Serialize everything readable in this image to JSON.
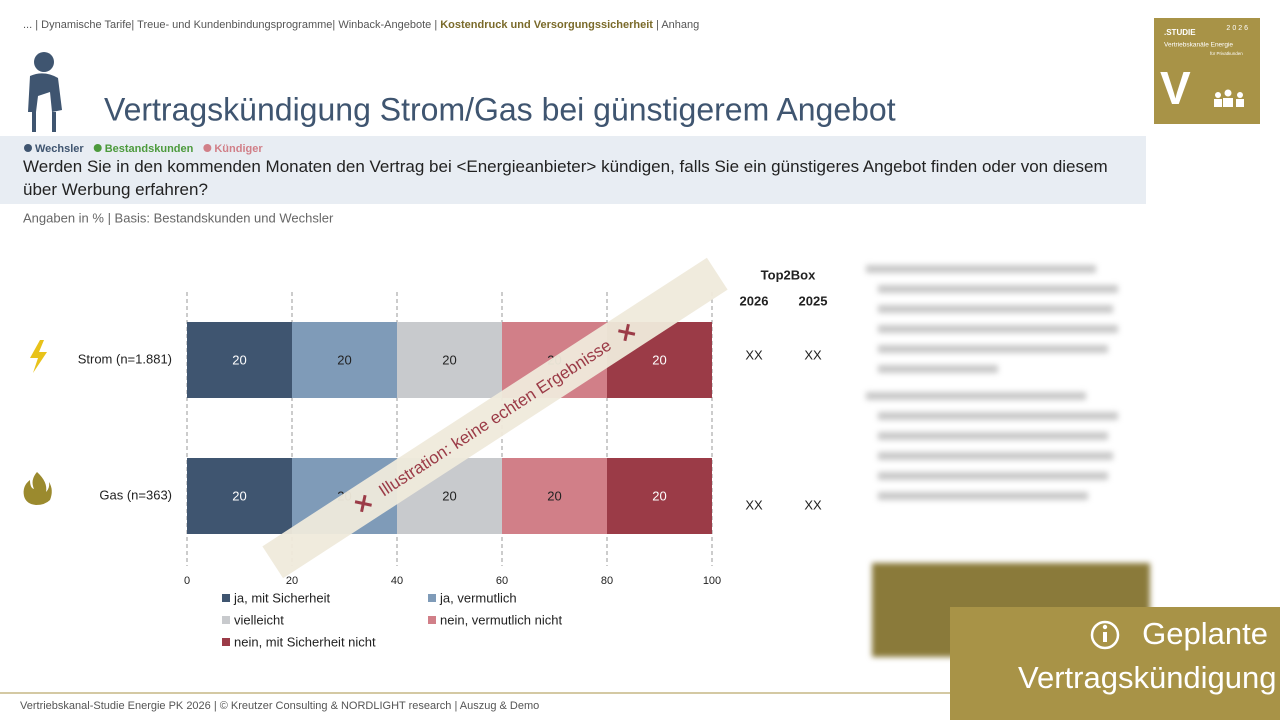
{
  "breadcrumb": {
    "before": "... | Dynamische Tarife| Treue- und Kundenbindungsprogramme| Winback-Angebote |",
    "active": "Kostendruck und Versorgungssicherheit",
    "after": "| Anhang"
  },
  "logo": {
    "kicker": ".STUDIE",
    "year": "2026",
    "line1": "Vertriebskanäle Energie",
    "line2": "für Privatkunden",
    "letter": "V"
  },
  "title": "Vertragskündigung Strom/Gas bei günstigerem Angebot",
  "segments": [
    {
      "name": "Wechsler",
      "color": "#3f5570"
    },
    {
      "name": "Bestandskunden",
      "color": "#4c9a3c"
    },
    {
      "name": "Kündiger",
      "color": "#d17f88"
    }
  ],
  "question": "Werden Sie in den kommenden Monaten den Vertrag bei <Energieanbieter> kündigen, falls Sie ein günstigeres Angebot finden oder von diesem über Werbung erfahren?",
  "basis": "Angaben in % | Basis: Bestandskunden und Wechsler",
  "chart_data": {
    "type": "stacked-bar-horizontal",
    "categories": [
      "Strom (n=1.881)",
      "Gas (n=363)"
    ],
    "series": [
      {
        "name": "ja, mit Sicherheit",
        "color": "#3f5570",
        "values": [
          20,
          20
        ]
      },
      {
        "name": "ja, vermutlich",
        "color": "#7f9bb8",
        "values": [
          20,
          20
        ]
      },
      {
        "name": "vielleicht",
        "color": "#c8cacd",
        "values": [
          20,
          20
        ]
      },
      {
        "name": "nein, vermutlich nicht",
        "color": "#d17f88",
        "values": [
          20,
          20
        ]
      },
      {
        "name": "nein, mit Sicherheit nicht",
        "color": "#9b3b47",
        "values": [
          20,
          20
        ]
      }
    ],
    "xlim": [
      0,
      100
    ],
    "xticks": [
      0,
      20,
      40,
      60,
      80,
      100
    ],
    "grid": true
  },
  "top2box": {
    "header": "Top2Box",
    "columns": [
      "2026",
      "2025"
    ],
    "rows": [
      [
        "XX",
        "XX"
      ],
      [
        "XX",
        "XX"
      ]
    ]
  },
  "watermark": "Illustration: keine echten Ergebnisse",
  "badge": "Geplante Vertragskündigung",
  "footer": "Vertriebskanal-Studie Energie PK 2026 | © Kreutzer Consulting & NORDLIGHT research | Auszug & Demo"
}
